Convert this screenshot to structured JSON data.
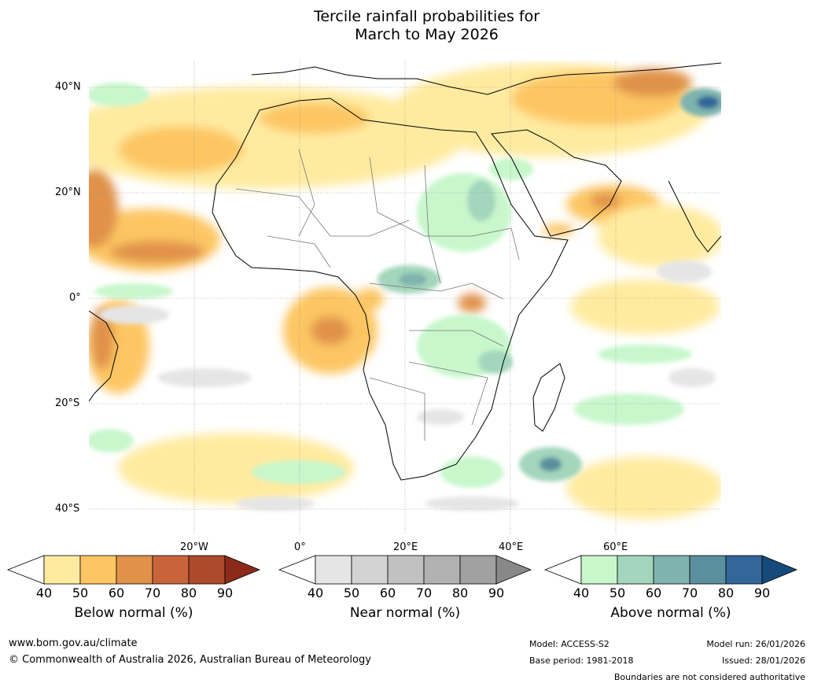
{
  "title": {
    "line1": "Tercile rainfall probabilities for",
    "line2": "March to May 2026"
  },
  "map": {
    "lat_labels": [
      "40°N",
      "20°N",
      "0°",
      "20°S",
      "40°S"
    ],
    "lon_labels": [
      "20°W",
      "0°",
      "20°E",
      "40°E",
      "60°E"
    ],
    "extent": {
      "lon_min": -40,
      "lon_max": 80,
      "lat_min": -45,
      "lat_max": 45
    }
  },
  "colorbars": [
    {
      "name": "below-normal",
      "label": "Below normal (%)",
      "ticks": [
        "40",
        "50",
        "60",
        "70",
        "80",
        "90"
      ],
      "colors": [
        "#ffffff",
        "#ffeba0",
        "#fdc663",
        "#e0924a",
        "#c8643a",
        "#ac4a2a",
        "#8b2a1a"
      ]
    },
    {
      "name": "near-normal",
      "label": "Near normal (%)",
      "ticks": [
        "40",
        "50",
        "60",
        "70",
        "80",
        "90"
      ],
      "colors": [
        "#ffffff",
        "#e5e5e5",
        "#d3d3d3",
        "#c1c1c1",
        "#b1b1b1",
        "#a1a1a1",
        "#888888"
      ]
    },
    {
      "name": "above-normal",
      "label": "Above normal (%)",
      "ticks": [
        "40",
        "50",
        "60",
        "70",
        "80",
        "90"
      ],
      "colors": [
        "#ffffff",
        "#c8f7cc",
        "#a3d6bc",
        "#7fb3ae",
        "#5b8f9e",
        "#336699",
        "#164a7a"
      ]
    }
  ],
  "footer": {
    "website": "www.bom.gov.au/climate",
    "copyright": "© Commonwealth of Australia 2026, Australian Bureau of Meteorology",
    "model": "Model: ACCESS-S2",
    "base_period": "Base period: 1981-2018",
    "model_run": "Model run: 26/01/2026",
    "issued": "Issued: 28/01/2026",
    "disclaimer": "Boundaries are not considered authoritative"
  }
}
